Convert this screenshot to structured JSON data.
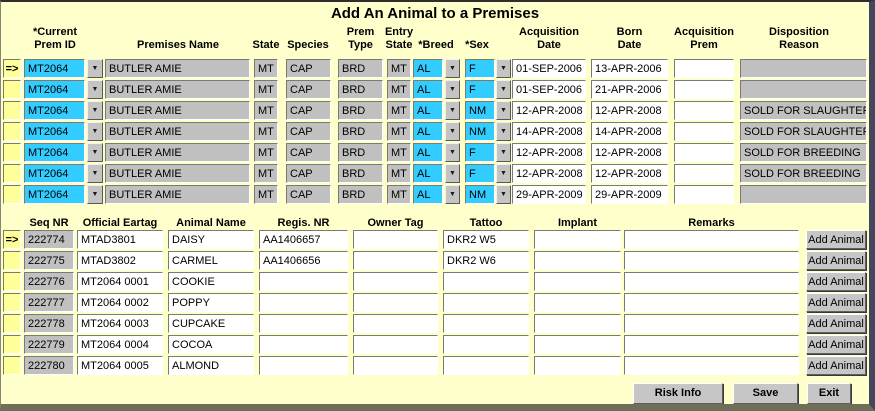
{
  "window": {
    "title": "Add An Animal to a Premises"
  },
  "colors": {
    "background": "#FFFFCC",
    "field_gray": "#C0C0C0",
    "field_cyan": "#33CCFF",
    "field_white": "#FFFFFF",
    "indicator_yellow": "#FFFF99",
    "window_border_dark": "#45455e"
  },
  "icons": {
    "dropdown_arrow": "▼",
    "record_pointer": "=>"
  },
  "top_table": {
    "headers": {
      "current_line1": "*Current",
      "current_line2": "Prem ID",
      "premises_name": "Premises Name",
      "state": "State",
      "species": "Species",
      "prem_type_line1": "Prem",
      "prem_type_line2": "Type",
      "entry_line1": "Entry",
      "entry_line2": "State",
      "breed": "*Breed",
      "sex": "*Sex",
      "acq_date_line1": "Acquisition",
      "acq_date_line2": "Date",
      "born_line1": "Born",
      "born_line2": "Date",
      "acq_prem_line1": "Acquisition",
      "acq_prem_line2": "Prem",
      "disposition_line1": "Disposition",
      "disposition_line2": "Reason"
    },
    "rows": [
      {
        "indicator": "=>",
        "prem_id": "MT2064",
        "premises_name": "BUTLER AMIE",
        "state": "MT",
        "species": "CAP",
        "prem_type": "BRD",
        "entry_state": "MT",
        "breed": "AL",
        "sex": "F",
        "acq_date": "01-SEP-2006",
        "born_date": "13-APR-2006",
        "acq_prem": "",
        "disposition": ""
      },
      {
        "indicator": "",
        "prem_id": "MT2064",
        "premises_name": "BUTLER AMIE",
        "state": "MT",
        "species": "CAP",
        "prem_type": "BRD",
        "entry_state": "MT",
        "breed": "AL",
        "sex": "F",
        "acq_date": "01-SEP-2006",
        "born_date": "21-APR-2006",
        "acq_prem": "",
        "disposition": ""
      },
      {
        "indicator": "",
        "prem_id": "MT2064",
        "premises_name": "BUTLER AMIE",
        "state": "MT",
        "species": "CAP",
        "prem_type": "BRD",
        "entry_state": "MT",
        "breed": "AL",
        "sex": "NM",
        "acq_date": "12-APR-2008",
        "born_date": "12-APR-2008",
        "acq_prem": "",
        "disposition": "SOLD FOR SLAUGHTER"
      },
      {
        "indicator": "",
        "prem_id": "MT2064",
        "premises_name": "BUTLER AMIE",
        "state": "MT",
        "species": "CAP",
        "prem_type": "BRD",
        "entry_state": "MT",
        "breed": "AL",
        "sex": "NM",
        "acq_date": "14-APR-2008",
        "born_date": "14-APR-2008",
        "acq_prem": "",
        "disposition": "SOLD FOR SLAUGHTER"
      },
      {
        "indicator": "",
        "prem_id": "MT2064",
        "premises_name": "BUTLER AMIE",
        "state": "MT",
        "species": "CAP",
        "prem_type": "BRD",
        "entry_state": "MT",
        "breed": "AL",
        "sex": "F",
        "acq_date": "12-APR-2008",
        "born_date": "12-APR-2008",
        "acq_prem": "",
        "disposition": "SOLD FOR BREEDING"
      },
      {
        "indicator": "",
        "prem_id": "MT2064",
        "premises_name": "BUTLER AMIE",
        "state": "MT",
        "species": "CAP",
        "prem_type": "BRD",
        "entry_state": "MT",
        "breed": "AL",
        "sex": "F",
        "acq_date": "12-APR-2008",
        "born_date": "12-APR-2008",
        "acq_prem": "",
        "disposition": "SOLD FOR BREEDING"
      },
      {
        "indicator": "",
        "prem_id": "MT2064",
        "premises_name": "BUTLER AMIE",
        "state": "MT",
        "species": "CAP",
        "prem_type": "BRD",
        "entry_state": "MT",
        "breed": "AL",
        "sex": "NM",
        "acq_date": "29-APR-2009",
        "born_date": "29-APR-2009",
        "acq_prem": "",
        "disposition": ""
      }
    ]
  },
  "bottom_table": {
    "headers": {
      "seq_nr": "Seq NR",
      "official_eartag": "Official Eartag",
      "animal_name": "Animal Name",
      "regis_nr": "Regis. NR",
      "owner_tag": "Owner Tag",
      "tattoo": "Tattoo",
      "implant": "Implant",
      "remarks": "Remarks"
    },
    "add_animal_label": "Add Animal",
    "rows": [
      {
        "indicator": "=>",
        "seq_nr": "222774",
        "official_eartag": "MTAD3801",
        "animal_name": "DAISY",
        "regis_nr": "AA1406657",
        "owner_tag": "",
        "tattoo": "DKR2 W5",
        "implant": "",
        "remarks": ""
      },
      {
        "indicator": "",
        "seq_nr": "222775",
        "official_eartag": "MTAD3802",
        "animal_name": "CARMEL",
        "regis_nr": "AA1406656",
        "owner_tag": "",
        "tattoo": "DKR2 W6",
        "implant": "",
        "remarks": ""
      },
      {
        "indicator": "",
        "seq_nr": "222776",
        "official_eartag": "MT2064 0001",
        "animal_name": "COOKIE",
        "regis_nr": "",
        "owner_tag": "",
        "tattoo": "",
        "implant": "",
        "remarks": ""
      },
      {
        "indicator": "",
        "seq_nr": "222777",
        "official_eartag": "MT2064 0002",
        "animal_name": "POPPY",
        "regis_nr": "",
        "owner_tag": "",
        "tattoo": "",
        "implant": "",
        "remarks": ""
      },
      {
        "indicator": "",
        "seq_nr": "222778",
        "official_eartag": "MT2064 0003",
        "animal_name": "CUPCAKE",
        "regis_nr": "",
        "owner_tag": "",
        "tattoo": "",
        "implant": "",
        "remarks": ""
      },
      {
        "indicator": "",
        "seq_nr": "222779",
        "official_eartag": "MT2064 0004",
        "animal_name": "COCOA",
        "regis_nr": "",
        "owner_tag": "",
        "tattoo": "",
        "implant": "",
        "remarks": ""
      },
      {
        "indicator": "",
        "seq_nr": "222780",
        "official_eartag": "MT2064 0005",
        "animal_name": "ALMOND",
        "regis_nr": "",
        "owner_tag": "",
        "tattoo": "",
        "implant": "",
        "remarks": ""
      }
    ]
  },
  "action_buttons": {
    "risk_info": "Risk Info",
    "save": "Save",
    "exit": "Exit"
  }
}
